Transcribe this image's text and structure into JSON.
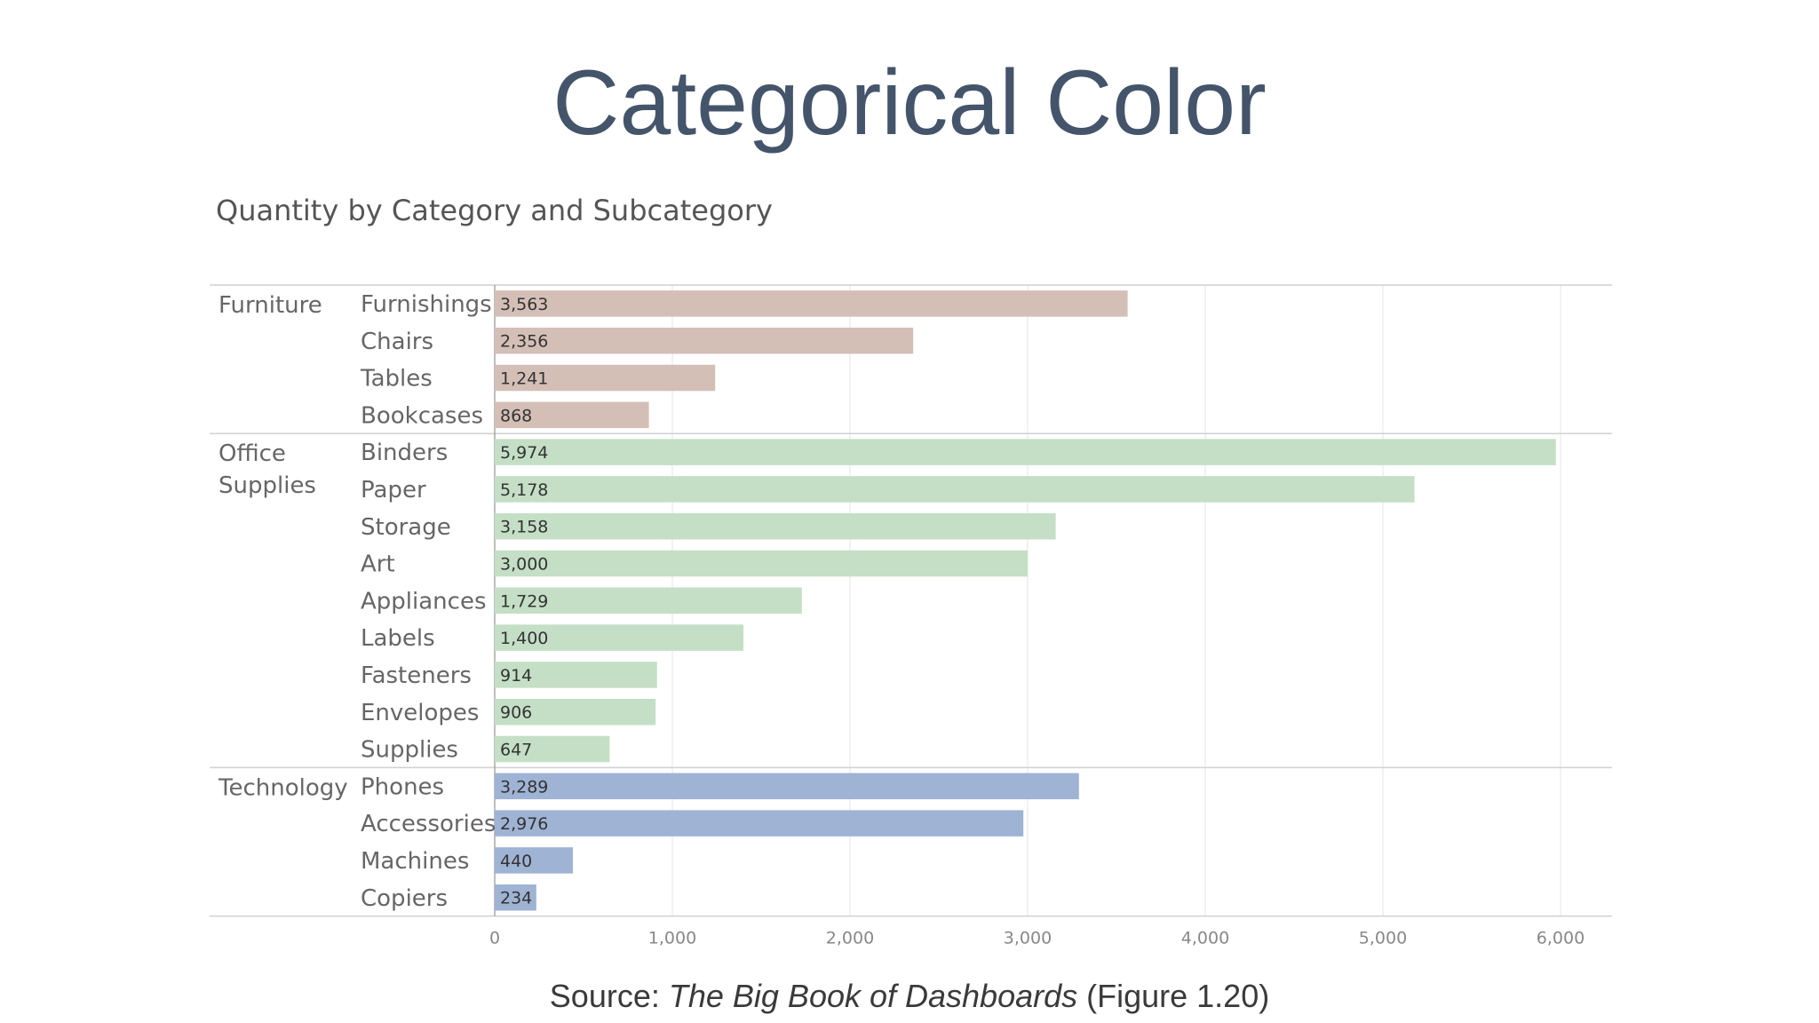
{
  "slide": {
    "title": "Categorical Color",
    "source_prefix": "Source: ",
    "source_book": "The Big Book of Dashboards",
    "source_suffix": " (Figure 1.20)"
  },
  "chart_data": {
    "type": "bar",
    "orientation": "horizontal",
    "title": "Quantity by Category and Subcategory",
    "xlim": [
      0,
      6000
    ],
    "x_ticks": [
      0,
      1000,
      2000,
      3000,
      4000,
      5000,
      6000
    ],
    "x_tick_labels": [
      "0",
      "1,000",
      "2,000",
      "3,000",
      "4,000",
      "5,000",
      "6,000"
    ],
    "grid": true,
    "groups": [
      {
        "name": "Furniture",
        "name_lines": [
          "Furniture"
        ],
        "color": "#d4bfb7",
        "items": [
          {
            "label": "Furnishings",
            "value": 3563,
            "value_label": "3,563"
          },
          {
            "label": "Chairs",
            "value": 2356,
            "value_label": "2,356"
          },
          {
            "label": "Tables",
            "value": 1241,
            "value_label": "1,241"
          },
          {
            "label": "Bookcases",
            "value": 868,
            "value_label": "868"
          }
        ]
      },
      {
        "name": "Office Supplies",
        "name_lines": [
          "Office",
          "Supplies"
        ],
        "color": "#c4dfc6",
        "items": [
          {
            "label": "Binders",
            "value": 5974,
            "value_label": "5,974"
          },
          {
            "label": "Paper",
            "value": 5178,
            "value_label": "5,178"
          },
          {
            "label": "Storage",
            "value": 3158,
            "value_label": "3,158"
          },
          {
            "label": "Art",
            "value": 3000,
            "value_label": "3,000"
          },
          {
            "label": "Appliances",
            "value": 1729,
            "value_label": "1,729"
          },
          {
            "label": "Labels",
            "value": 1400,
            "value_label": "1,400"
          },
          {
            "label": "Fasteners",
            "value": 914,
            "value_label": "914"
          },
          {
            "label": "Envelopes",
            "value": 906,
            "value_label": "906"
          },
          {
            "label": "Supplies",
            "value": 647,
            "value_label": "647"
          }
        ]
      },
      {
        "name": "Technology",
        "name_lines": [
          "Technology"
        ],
        "color": "#9fb3d4",
        "items": [
          {
            "label": "Phones",
            "value": 3289,
            "value_label": "3,289"
          },
          {
            "label": "Accessories",
            "value": 2976,
            "value_label": "2,976"
          },
          {
            "label": "Machines",
            "value": 440,
            "value_label": "440"
          },
          {
            "label": "Copiers",
            "value": 234,
            "value_label": "234"
          }
        ]
      }
    ]
  }
}
